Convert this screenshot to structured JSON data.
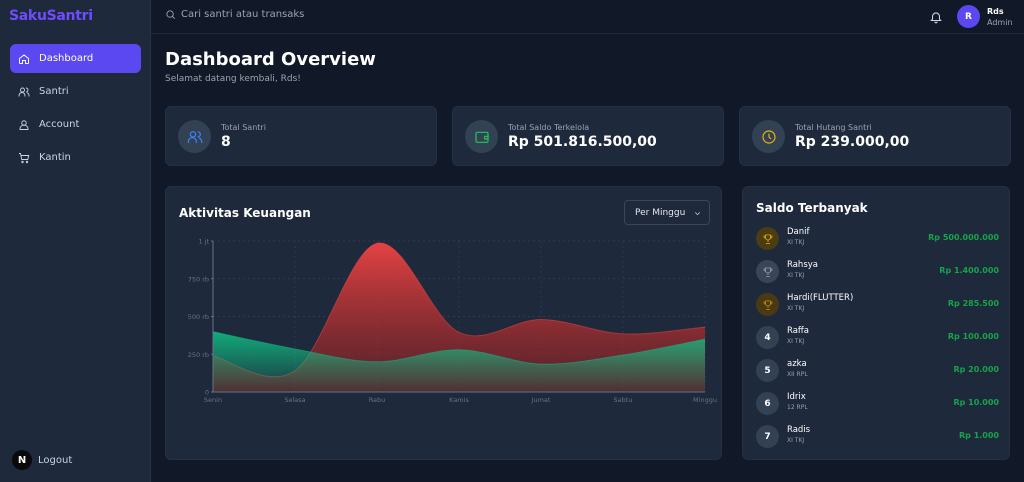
{
  "brand": "SakuSantri",
  "sidebar": {
    "items": [
      {
        "label": "Dashboard",
        "icon": "home-icon",
        "active": true
      },
      {
        "label": "Santri",
        "icon": "users-icon"
      },
      {
        "label": "Account",
        "icon": "user-icon"
      },
      {
        "label": "Kantin",
        "icon": "cart-icon"
      }
    ],
    "logout_label": "Logout",
    "logout_avatar": "N"
  },
  "topbar": {
    "search_placeholder": "Cari santri atau transaks",
    "user": {
      "initial": "R",
      "name": "Rds",
      "role": "Admin"
    }
  },
  "header": {
    "title": "Dashboard Overview",
    "subtitle": "Selamat datang kembali, Rds!"
  },
  "stats": [
    {
      "label": "Total Santri",
      "value": "8",
      "icon": "users-icon",
      "color": "#3b82f6"
    },
    {
      "label": "Total Saldo Terkelola",
      "value": "Rp 501.816.500,00",
      "icon": "wallet-icon",
      "color": "#22c55e"
    },
    {
      "label": "Total Hutang Santri",
      "value": "Rp 239.000,00",
      "icon": "clock-icon",
      "color": "#eab308"
    }
  ],
  "activity": {
    "title": "Aktivitas Keuangan",
    "filter": "Per Minggu"
  },
  "chart_data": {
    "type": "area",
    "title": "Aktivitas Keuangan",
    "categories": [
      "Senin",
      "Selasa",
      "Rabu",
      "Kamis",
      "Jumat",
      "Sabtu",
      "Minggu"
    ],
    "y_ticks": [
      "0",
      "250 rb",
      "500 rb",
      "750 rb",
      "1 jt"
    ],
    "ylim": [
      0,
      1000000
    ],
    "grid": true,
    "series": [
      {
        "name": "Series A (green)",
        "color": "#10b981",
        "values": [
          400000,
          285000,
          200000,
          280000,
          185000,
          245000,
          350000
        ]
      },
      {
        "name": "Series B (red)",
        "color": "#ef4444",
        "values": [
          240000,
          140000,
          985000,
          395000,
          480000,
          385000,
          430000
        ]
      }
    ]
  },
  "ranking": {
    "title": "Saldo Terbanyak",
    "items": [
      {
        "rank": "1",
        "name": "Danif",
        "class": "XI TKJ",
        "amount": "Rp 500.000.000",
        "trophy": "gold"
      },
      {
        "rank": "2",
        "name": "Rahsya",
        "class": "XI TKJ",
        "amount": "Rp 1.400.000",
        "trophy": "silver"
      },
      {
        "rank": "3",
        "name": "Hardi(FLUTTER)",
        "class": "XI TKJ",
        "amount": "Rp 285.500",
        "trophy": "bronze"
      },
      {
        "rank": "4",
        "name": "Raffa",
        "class": "XI TKJ",
        "amount": "Rp 100.000"
      },
      {
        "rank": "5",
        "name": "azka",
        "class": "XII RPL",
        "amount": "Rp 20.000"
      },
      {
        "rank": "6",
        "name": "Idrix",
        "class": "12 RPL",
        "amount": "Rp 10.000"
      },
      {
        "rank": "7",
        "name": "Radis",
        "class": "XI TKJ",
        "amount": "Rp 1.000"
      }
    ]
  }
}
